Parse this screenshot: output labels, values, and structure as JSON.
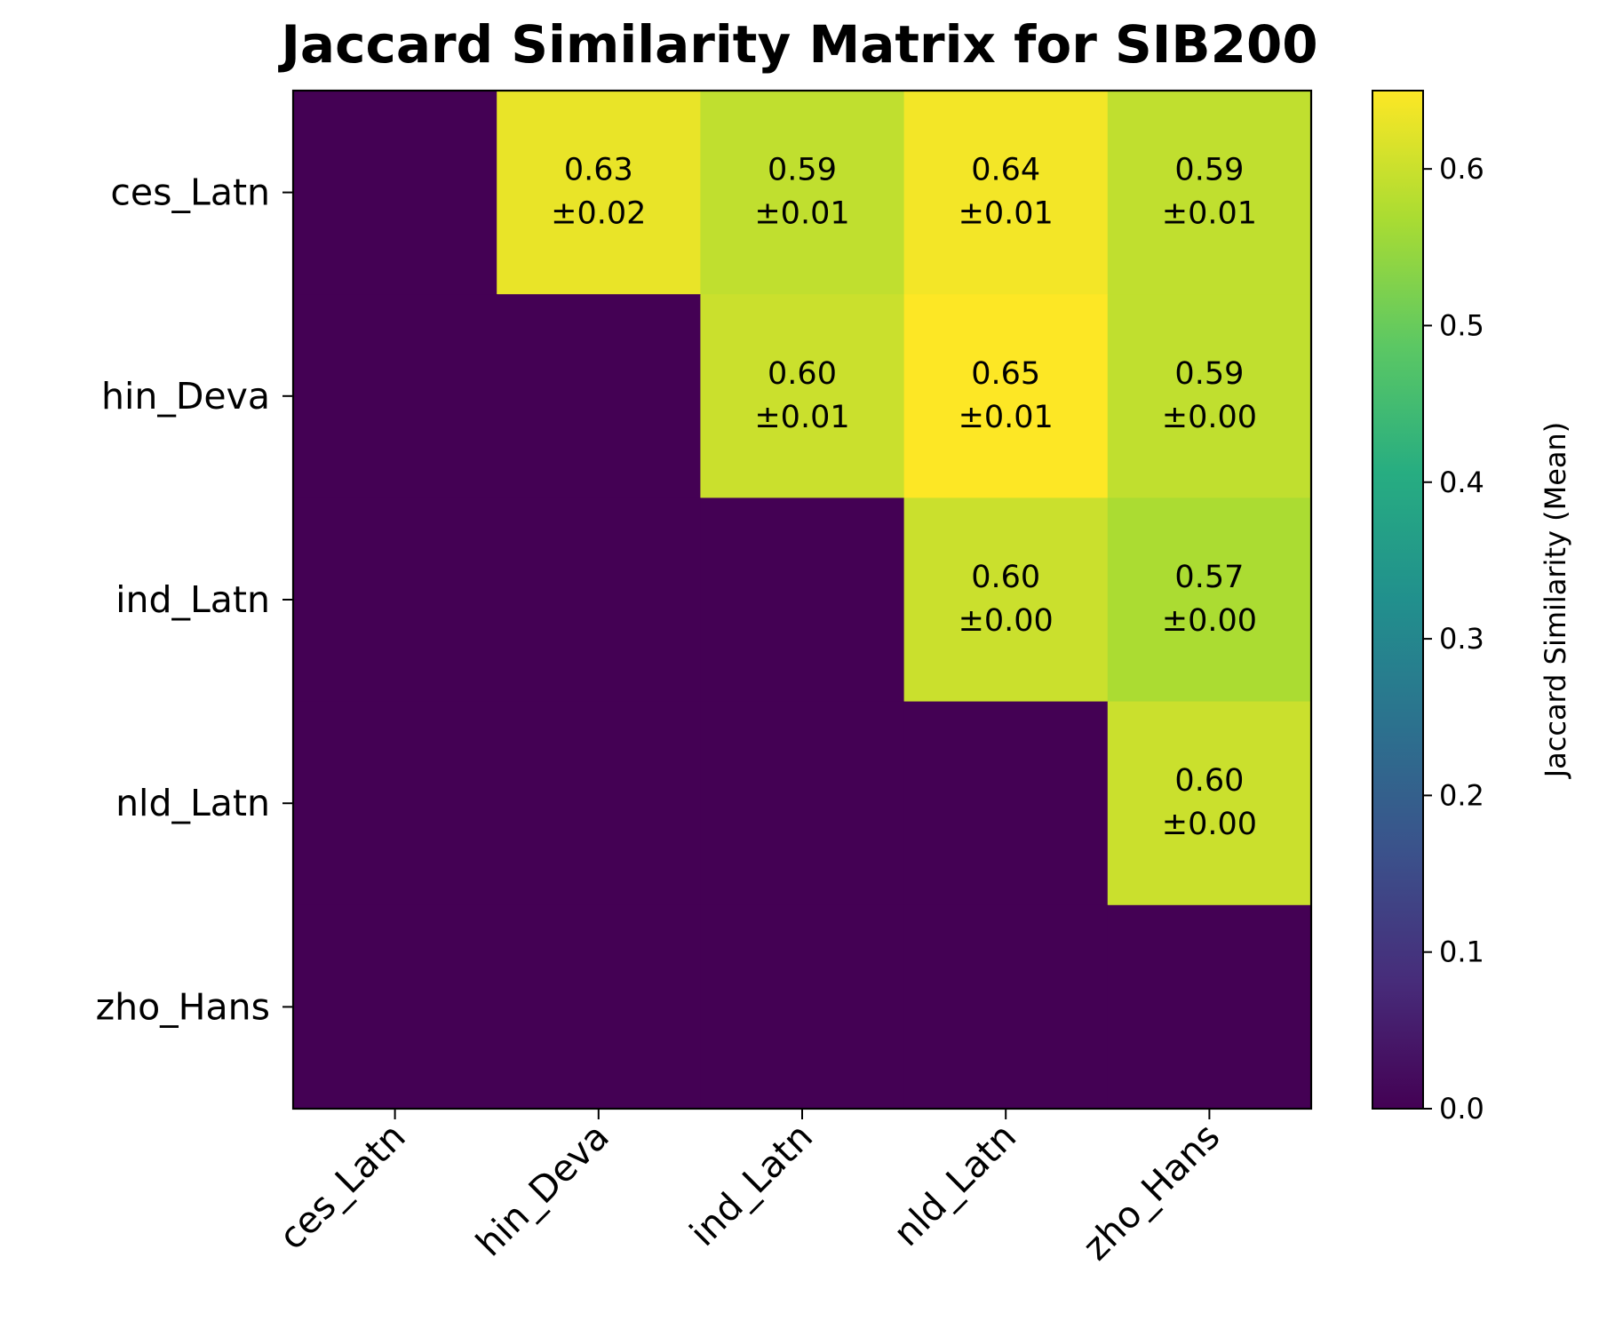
{
  "chart_data": {
    "type": "heatmap",
    "title": "Jaccard Similarity Matrix for SIB200",
    "x_categories": [
      "ces_Latn",
      "hin_Deva",
      "ind_Latn",
      "nld_Latn",
      "zho_Hans"
    ],
    "y_categories": [
      "ces_Latn",
      "hin_Deva",
      "ind_Latn",
      "nld_Latn",
      "zho_Hans"
    ],
    "values": [
      [
        0,
        0.63,
        0.59,
        0.64,
        0.59
      ],
      [
        0,
        0,
        0.6,
        0.65,
        0.59
      ],
      [
        0,
        0,
        0,
        0.6,
        0.57
      ],
      [
        0,
        0,
        0,
        0,
        0.6
      ],
      [
        0,
        0,
        0,
        0,
        0
      ]
    ],
    "cell_labels": [
      [
        "",
        "0.63\n±0.02",
        "0.59\n±0.01",
        "0.64\n±0.01",
        "0.59\n±0.01"
      ],
      [
        "",
        "",
        "0.60\n±0.01",
        "0.65\n±0.01",
        "0.59\n±0.00"
      ],
      [
        "",
        "",
        "",
        "0.60\n±0.00",
        "0.57\n±0.00"
      ],
      [
        "",
        "",
        "",
        "",
        "0.60\n±0.00"
      ],
      [
        "",
        "",
        "",
        "",
        ""
      ]
    ],
    "colorbar": {
      "label": "Jaccard Similarity (Mean)",
      "range": [
        0,
        0.65
      ],
      "ticks": [
        "0.0",
        "0.1",
        "0.2",
        "0.3",
        "0.4",
        "0.5",
        "0.6"
      ],
      "colormap": "viridis"
    },
    "grid": false
  }
}
